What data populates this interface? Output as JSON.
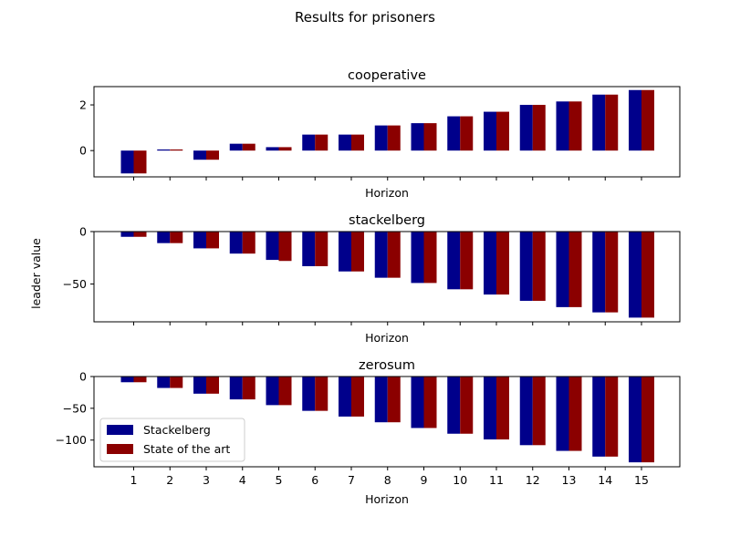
{
  "figure": {
    "suptitle": "Results for prisoners",
    "ylabel": "leader value"
  },
  "colors": {
    "Stackelberg": "#00008b",
    "State of the art": "#8b0000"
  },
  "chart_data": [
    {
      "type": "bar",
      "title": "cooperative",
      "xlabel": "Horizon",
      "categories": [
        "1",
        "2",
        "3",
        "4",
        "5",
        "6",
        "7",
        "8",
        "9",
        "10",
        "11",
        "12",
        "13",
        "14",
        "15"
      ],
      "ylim": [
        -1.15,
        2.8
      ],
      "yticks": [
        0,
        2
      ],
      "show_xticklabels": false,
      "legend": null,
      "series": [
        {
          "name": "Stackelberg",
          "values": [
            -1.0,
            0.05,
            -0.4,
            0.3,
            0.15,
            0.7,
            0.7,
            1.1,
            1.2,
            1.5,
            1.7,
            2.0,
            2.15,
            2.45,
            2.65
          ]
        },
        {
          "name": "State of the art",
          "values": [
            -1.0,
            0.05,
            -0.4,
            0.3,
            0.15,
            0.7,
            0.7,
            1.1,
            1.2,
            1.5,
            1.7,
            2.0,
            2.15,
            2.45,
            2.65
          ]
        }
      ]
    },
    {
      "type": "bar",
      "title": "stackelberg",
      "xlabel": "Horizon",
      "categories": [
        "1",
        "2",
        "3",
        "4",
        "5",
        "6",
        "7",
        "8",
        "9",
        "10",
        "11",
        "12",
        "13",
        "14",
        "15"
      ],
      "ylim": [
        -86,
        0
      ],
      "yticks": [
        0,
        -50
      ],
      "show_xticklabels": false,
      "legend": null,
      "series": [
        {
          "name": "Stackelberg",
          "values": [
            -5,
            -11,
            -16,
            -21,
            -27,
            -33,
            -38,
            -44,
            -49,
            -55,
            -60,
            -66,
            -72,
            -77,
            -82
          ]
        },
        {
          "name": "State of the art",
          "values": [
            -5,
            -11,
            -16,
            -21,
            -28,
            -33,
            -38,
            -44,
            -49,
            -55,
            -60,
            -66,
            -72,
            -77,
            -82
          ]
        }
      ]
    },
    {
      "type": "bar",
      "title": "zerosum",
      "xlabel": "Horizon",
      "categories": [
        "1",
        "2",
        "3",
        "4",
        "5",
        "6",
        "7",
        "8",
        "9",
        "10",
        "11",
        "12",
        "13",
        "14",
        "15"
      ],
      "ylim": [
        -142,
        0
      ],
      "yticks": [
        0,
        -50,
        -100
      ],
      "show_xticklabels": true,
      "legend": "lower left",
      "series": [
        {
          "name": "Stackelberg",
          "values": [
            -9,
            -18,
            -27,
            -36,
            -45,
            -54,
            -63,
            -72,
            -81,
            -90,
            -99,
            -108,
            -117,
            -126,
            -135
          ]
        },
        {
          "name": "State of the art",
          "values": [
            -9,
            -18,
            -27,
            -36,
            -45,
            -54,
            -63,
            -72,
            -81,
            -90,
            -99,
            -108,
            -117,
            -126,
            -135
          ]
        }
      ]
    }
  ]
}
